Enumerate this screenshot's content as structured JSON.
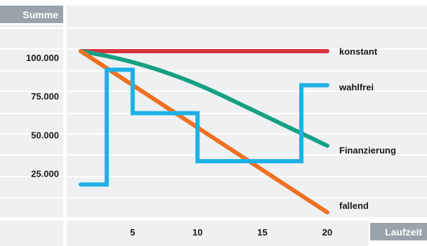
{
  "chart_data": {
    "type": "line",
    "ylabel": "Summe",
    "xlabel": "Laufzeit",
    "xlim": [
      0,
      21
    ],
    "ylim": [
      0,
      125000
    ],
    "x_ticks": [
      5,
      10,
      15,
      20
    ],
    "x_tick_labels": [
      "5",
      "10",
      "15",
      "20"
    ],
    "y_ticks": [
      25000,
      50000,
      75000,
      100000
    ],
    "y_tick_labels": [
      "25.000",
      "50.000",
      "75.000",
      "100.000"
    ],
    "grid": true,
    "legend": "inline labels at line ends (right)",
    "series": [
      {
        "name": "konstant",
        "color": "#d6323a",
        "x": [
          1,
          20
        ],
        "y": [
          104000,
          104000
        ]
      },
      {
        "name": "Finanzierung",
        "color": "#16a085",
        "x": [
          1,
          3,
          5,
          7,
          9,
          11,
          13,
          15,
          17,
          20
        ],
        "y": [
          104000,
          101000,
          97000,
          92000,
          86000,
          79000,
          71000,
          63000,
          55000,
          43000
        ]
      },
      {
        "name": "wahlfrei",
        "color": "#1fb0e6",
        "step": true,
        "x": [
          1,
          3,
          3,
          5,
          5,
          10,
          10,
          14,
          14,
          18,
          18,
          20
        ],
        "y": [
          18000,
          18000,
          92000,
          92000,
          64000,
          64000,
          33000,
          33000,
          33000,
          33000,
          82000,
          82000
        ]
      },
      {
        "name": "fallend",
        "color": "#f07022",
        "x": [
          1,
          20
        ],
        "y": [
          104000,
          0
        ]
      }
    ]
  }
}
